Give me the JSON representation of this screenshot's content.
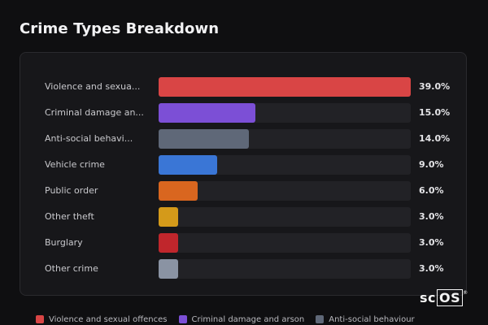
{
  "page": {
    "title": "Crime Types Breakdown"
  },
  "chart_data": {
    "type": "bar",
    "orientation": "horizontal",
    "unit": "%",
    "xlim": [
      0,
      39
    ],
    "grid": false,
    "legend_placement": "bottom",
    "categories": [
      "Violence and sexua...",
      "Criminal damage an...",
      "Anti-social behavi...",
      "Vehicle crime",
      "Public order",
      "Other theft",
      "Burglary",
      "Other crime"
    ],
    "values": [
      39.0,
      15.0,
      14.0,
      9.0,
      6.0,
      3.0,
      3.0,
      3.0
    ],
    "value_labels": [
      "39.0%",
      "15.0%",
      "14.0%",
      "9.0%",
      "6.0%",
      "3.0%",
      "3.0%",
      "3.0%"
    ],
    "colors": [
      "#d94545",
      "#7c4fd6",
      "#5f6878",
      "#3a76d6",
      "#d9661f",
      "#d49a1a",
      "#c0262c",
      "#8a93a3"
    ]
  },
  "legend": {
    "items": [
      {
        "label": "Violence and sexual offences",
        "color": "#d94545"
      },
      {
        "label": "Criminal damage and arson",
        "color": "#7c4fd6"
      },
      {
        "label": "Anti-social behaviour",
        "color": "#5f6878"
      }
    ]
  },
  "watermark": {
    "prefix": "sc",
    "boxed": "OS",
    "mark": "®"
  }
}
